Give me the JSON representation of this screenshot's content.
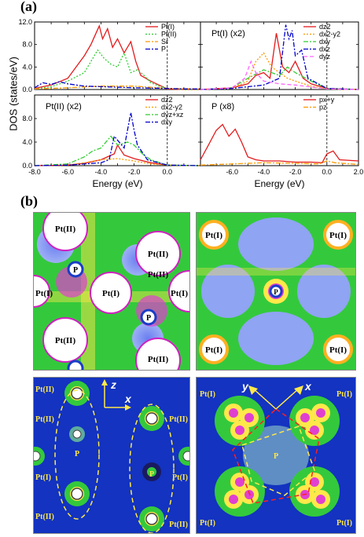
{
  "figure": {
    "panel_a_label": "(a)",
    "panel_b_label": "(b)",
    "ylabel": "DOS (states/eV)",
    "xlabel": "Energy (eV)"
  },
  "chart_data": [
    {
      "type": "line",
      "subplot": "top-left",
      "title": "",
      "xlim": [
        -8.0,
        2.0
      ],
      "ylim": [
        0.0,
        12.0
      ],
      "xticks": [
        "-8.0",
        "-6.0",
        "-4.0",
        "-2.0",
        "0.0"
      ],
      "yticks": [
        "0.0",
        "4.0",
        "8.0",
        "12.0"
      ],
      "fermi_line": 0.0,
      "series": [
        {
          "name": "Pt(I)",
          "color": "#e31a1c",
          "dash": "solid",
          "x": [
            -8.0,
            -7.0,
            -6.0,
            -5.0,
            -4.6,
            -4.3,
            -4.1,
            -3.9,
            -3.6,
            -3.3,
            -3.0,
            -2.6,
            -2.2,
            -1.9,
            -1.6,
            -1.3,
            -1.0,
            -0.5,
            0.0,
            1.0,
            2.0
          ],
          "y": [
            0.2,
            0.8,
            2.0,
            6.0,
            8.0,
            10.0,
            11.3,
            9.0,
            10.8,
            7.5,
            9.0,
            6.5,
            8.5,
            5.0,
            2.5,
            2.0,
            1.5,
            0.8,
            0.1,
            0.0,
            0.0
          ]
        },
        {
          "name": "Pt(II)",
          "color": "#33cc33",
          "dash": "dot",
          "x": [
            -8.0,
            -7.0,
            -6.0,
            -5.0,
            -4.6,
            -4.2,
            -3.8,
            -3.4,
            -3.0,
            -2.6,
            -2.2,
            -1.8,
            -1.4,
            -1.0,
            -0.5,
            0.0,
            1.0,
            2.0
          ],
          "y": [
            0.1,
            0.5,
            1.5,
            3.0,
            5.0,
            7.0,
            5.5,
            4.5,
            4.0,
            6.5,
            3.0,
            3.5,
            2.5,
            1.2,
            0.6,
            0.2,
            0.0,
            0.0
          ]
        },
        {
          "name": "Sr",
          "color": "#ff9900",
          "dash": "dashdot",
          "x": [
            -8.0,
            -6.0,
            -4.0,
            -2.0,
            0.0,
            2.0
          ],
          "y": [
            0.1,
            0.3,
            0.6,
            0.6,
            0.2,
            0.1
          ]
        },
        {
          "name": "P",
          "color": "#0000cc",
          "dash": "dashdot",
          "x": [
            -8.0,
            -7.5,
            -7.0,
            -6.5,
            -6.0,
            -5.5,
            -5.0,
            -4.0,
            -2.0,
            0.0,
            1.0,
            2.0
          ],
          "y": [
            0.3,
            1.2,
            0.9,
            1.4,
            1.0,
            0.8,
            0.6,
            0.5,
            0.3,
            0.2,
            0.1,
            0.1
          ]
        }
      ]
    },
    {
      "type": "line",
      "subplot": "top-right",
      "title": "Pt(I) (x2)",
      "xlim": [
        -8.0,
        2.0
      ],
      "ylim": [
        0.0,
        12.0
      ],
      "xticks": [],
      "yticks": [],
      "fermi_line": 0.0,
      "series": [
        {
          "name": "d_z^2",
          "label": "dz2",
          "color": "#e31a1c",
          "dash": "solid",
          "x": [
            -8.0,
            -6.0,
            -5.0,
            -4.5,
            -4.0,
            -3.6,
            -3.2,
            -2.8,
            -2.4,
            -2.0,
            -1.5,
            -1.0,
            0.0,
            2.0
          ],
          "y": [
            0.0,
            0.3,
            1.0,
            2.5,
            3.0,
            2.0,
            10.0,
            4.0,
            3.0,
            5.0,
            2.0,
            1.0,
            0.2,
            0.0
          ]
        },
        {
          "name": "d_x2-y2",
          "label": "dx2-y2",
          "color": "#ff9900",
          "dash": "dot",
          "x": [
            -8.0,
            -6.0,
            -5.0,
            -4.5,
            -4.0,
            -3.5,
            -3.0,
            -2.5,
            -2.0,
            -1.0,
            0.0,
            2.0
          ],
          "y": [
            0.0,
            0.2,
            1.5,
            5.0,
            6.5,
            4.0,
            3.0,
            2.0,
            1.5,
            0.6,
            0.1,
            0.0
          ]
        },
        {
          "name": "d_xy",
          "label": "dxy",
          "color": "#33cc33",
          "dash": "dashdot",
          "x": [
            -8.0,
            -6.0,
            -5.0,
            -4.0,
            -3.0,
            -2.5,
            -2.0,
            -1.0,
            0.0,
            2.0
          ],
          "y": [
            0.0,
            0.3,
            2.0,
            3.5,
            2.5,
            4.0,
            3.0,
            1.5,
            0.2,
            0.0
          ]
        },
        {
          "name": "d_xz",
          "label": "dxz",
          "color": "#0000cc",
          "dash": "dashdot",
          "x": [
            -8.0,
            -6.0,
            -4.0,
            -3.0,
            -2.6,
            -2.4,
            -2.2,
            -2.0,
            -1.6,
            -1.2,
            0.0,
            2.0
          ],
          "y": [
            0.0,
            0.2,
            0.8,
            2.0,
            11.5,
            9.0,
            10.5,
            6.0,
            7.0,
            2.0,
            0.2,
            0.0
          ]
        },
        {
          "name": "d_yz",
          "label": "dyz",
          "color": "#ff66ff",
          "dash": "dash",
          "x": [
            -8.0,
            -6.0,
            -5.2,
            -4.8,
            -4.5,
            -4.0,
            -3.0,
            -2.0,
            0.0,
            2.0
          ],
          "y": [
            0.0,
            0.3,
            2.0,
            5.0,
            3.0,
            1.5,
            1.0,
            0.8,
            0.1,
            0.0
          ]
        }
      ]
    },
    {
      "type": "line",
      "subplot": "bottom-left",
      "title": "Pt(II) (x2)",
      "xlim": [
        -8.0,
        2.0
      ],
      "ylim": [
        0.0,
        12.0
      ],
      "xticks": [
        "-8.0",
        "-6.0",
        "-4.0",
        "-2.0",
        "0.0"
      ],
      "yticks": [
        "0.0",
        "4.0",
        "8.0"
      ],
      "fermi_line": 0.0,
      "series": [
        {
          "name": "d_z^2",
          "label": "dz2",
          "color": "#e31a1c",
          "dash": "solid",
          "x": [
            -8.0,
            -6.0,
            -5.0,
            -4.0,
            -3.2,
            -3.0,
            -2.6,
            -2.0,
            -1.0,
            0.0,
            2.0
          ],
          "y": [
            0.0,
            0.1,
            0.4,
            1.0,
            2.0,
            3.5,
            1.8,
            1.2,
            0.5,
            0.1,
            0.0
          ]
        },
        {
          "name": "d_x2-y2",
          "label": "dx2-y2",
          "color": "#ff9900",
          "dash": "dot",
          "x": [
            -8.0,
            -6.0,
            -5.0,
            -4.0,
            -3.0,
            -2.0,
            -1.0,
            0.0,
            2.0
          ],
          "y": [
            0.0,
            0.1,
            0.5,
            1.0,
            1.2,
            0.8,
            0.3,
            0.1,
            0.0
          ]
        },
        {
          "name": "d_yz+xz",
          "label": "dyz+xz",
          "color": "#33cc33",
          "dash": "dashdot",
          "x": [
            -8.0,
            -6.0,
            -5.0,
            -4.5,
            -4.0,
            -3.4,
            -3.0,
            -2.4,
            -2.0,
            -1.5,
            -1.0,
            0.0,
            2.0
          ],
          "y": [
            0.0,
            0.3,
            1.5,
            2.5,
            3.0,
            5.0,
            3.5,
            4.0,
            3.5,
            2.0,
            1.0,
            0.1,
            0.0
          ]
        },
        {
          "name": "d_xy",
          "label": "dxy",
          "color": "#0000cc",
          "dash": "dashdot",
          "x": [
            -8.0,
            -6.0,
            -4.0,
            -3.5,
            -3.2,
            -2.6,
            -2.2,
            -2.0,
            -1.8,
            -1.2,
            0.0,
            2.0
          ],
          "y": [
            0.0,
            0.1,
            0.5,
            1.0,
            5.0,
            3.0,
            9.0,
            6.0,
            3.5,
            1.0,
            0.1,
            0.0
          ]
        }
      ]
    },
    {
      "type": "line",
      "subplot": "bottom-right",
      "title": "P (x8)",
      "xlim": [
        -8.0,
        2.0
      ],
      "ylim": [
        0.0,
        12.0
      ],
      "xticks": [
        "-6.0",
        "-4.0",
        "-2.0",
        "0.0",
        "2.0"
      ],
      "yticks": [],
      "fermi_line": 0.0,
      "series": [
        {
          "name": "p_x+y",
          "label": "px+y",
          "color": "#e31a1c",
          "dash": "solid",
          "x": [
            -8.0,
            -7.5,
            -7.0,
            -6.6,
            -6.2,
            -5.8,
            -5.4,
            -5.0,
            -4.5,
            -4.0,
            -3.0,
            -2.0,
            -1.0,
            -0.3,
            0.0,
            0.4,
            0.8,
            2.0
          ],
          "y": [
            1.0,
            3.5,
            6.0,
            7.0,
            5.0,
            6.2,
            4.0,
            1.5,
            1.0,
            0.8,
            0.8,
            0.6,
            0.6,
            0.5,
            2.0,
            2.5,
            1.0,
            0.8
          ]
        },
        {
          "name": "p_z",
          "label": "pz",
          "color": "#ff9900",
          "dash": "dashdot",
          "x": [
            -8.0,
            -6.0,
            -4.0,
            -2.0,
            -0.5,
            0.0,
            0.5,
            2.0
          ],
          "y": [
            0.1,
            0.3,
            0.5,
            0.4,
            0.3,
            0.8,
            0.5,
            0.2
          ]
        }
      ]
    }
  ],
  "density_maps": {
    "top_left": {
      "labels": [
        "Pt(II)",
        "Pt(II)",
        "P",
        "Pt(II)",
        "Pt(I)",
        "Pt(I)",
        "Pt(I)",
        "P",
        "Pt(II)",
        "Pt(II)"
      ]
    },
    "top_right": {
      "labels": [
        "Pt(I)",
        "Pt(I)",
        "P",
        "Pt(I)",
        "Pt(I)"
      ]
    },
    "bottom_left": {
      "axis_labels": [
        "z",
        "x"
      ],
      "labels": [
        "Pt(II)",
        "Pt(II)",
        "Pt(II)",
        "P",
        "P",
        "Pt(I)",
        "Pt(I)",
        "Pt(II)",
        "Pt(II)"
      ]
    },
    "bottom_right": {
      "axis_labels": [
        "y",
        "x"
      ],
      "labels": [
        "Pt(I)",
        "Pt(I)",
        "P",
        "Pt(I)",
        "Pt(I)"
      ]
    }
  }
}
